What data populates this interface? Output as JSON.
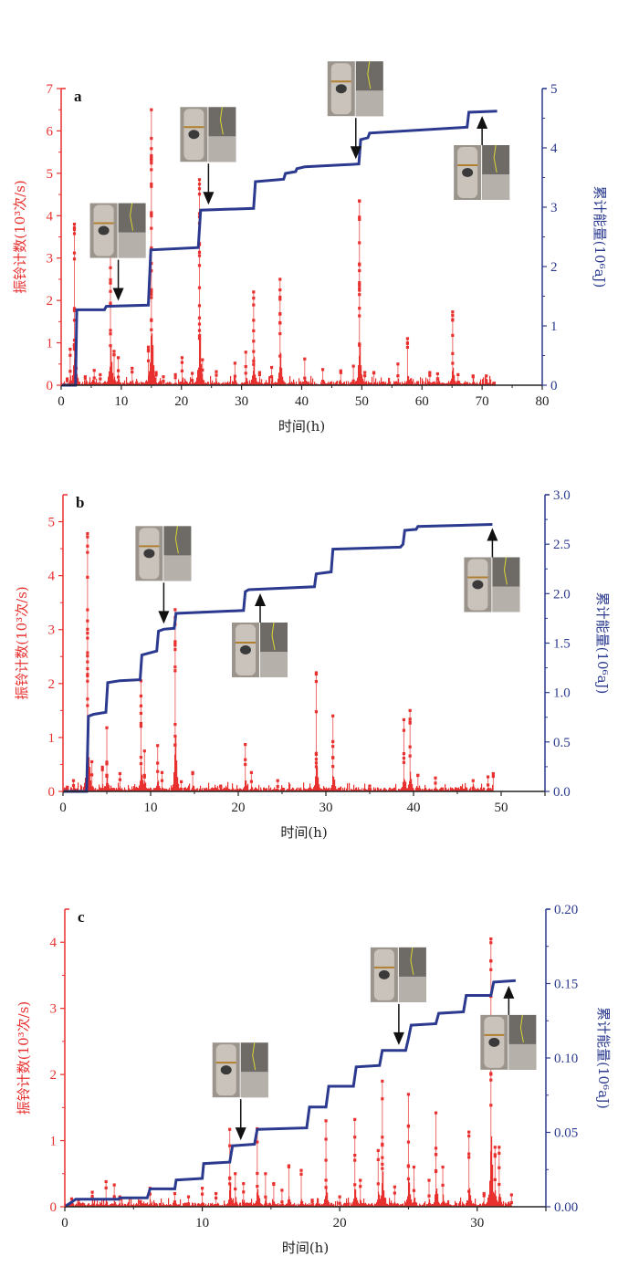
{
  "chart_data": [
    {
      "type": "bar+line",
      "panel": "a",
      "xlabel": "时间(h)",
      "ylabel_left": "振铃计数(10³次/s)",
      "ylabel_right": "累计能量(10⁶aJ)",
      "xlim": [
        0,
        80
      ],
      "xticks": [
        "0",
        "10",
        "20",
        "30",
        "40",
        "50",
        "60",
        "70",
        "80"
      ],
      "ylim_left": [
        0,
        7
      ],
      "yticks_left": [
        "0",
        "1",
        "2",
        "3",
        "4",
        "5",
        "6",
        "7"
      ],
      "ylim_right": [
        0,
        5
      ],
      "yticks_right": [
        "0",
        "1",
        "2",
        "3",
        "4",
        "5"
      ],
      "colors": {
        "ring": "#e8312f",
        "energy": "#2b3a8f"
      },
      "series": [
        {
          "name": "振铃计数",
          "kind": "bar",
          "peaks": [
            [
              1.0,
              0.15
            ],
            [
              1.5,
              0.85
            ],
            [
              2.2,
              3.8
            ],
            [
              2.5,
              0.4
            ],
            [
              4.0,
              0.2
            ],
            [
              5.5,
              0.35
            ],
            [
              6.5,
              0.25
            ],
            [
              8.2,
              3.65
            ],
            [
              8.8,
              0.8
            ],
            [
              9.5,
              0.65
            ],
            [
              11.8,
              0.4
            ],
            [
              14.5,
              0.9
            ],
            [
              15.0,
              6.5
            ],
            [
              15.8,
              0.3
            ],
            [
              17,
              0.2
            ],
            [
              19,
              0.25
            ],
            [
              20.1,
              0.65
            ],
            [
              21.8,
              0.28
            ],
            [
              23.0,
              4.85
            ],
            [
              23.5,
              0.6
            ],
            [
              25.8,
              0.32
            ],
            [
              28.9,
              0.52
            ],
            [
              30.7,
              0.78
            ],
            [
              32.0,
              2.2
            ],
            [
              33,
              0.3
            ],
            [
              35,
              0.42
            ],
            [
              36.4,
              2.5
            ],
            [
              40.5,
              0.62
            ],
            [
              43.5,
              0.37
            ],
            [
              46.5,
              0.34
            ],
            [
              48.6,
              0.45
            ],
            [
              49.6,
              4.35
            ],
            [
              50.5,
              0.3
            ],
            [
              52,
              0.3
            ],
            [
              56,
              0.5
            ],
            [
              57.6,
              1.1
            ],
            [
              61.3,
              0.3
            ],
            [
              62.6,
              0.27
            ],
            [
              65.1,
              1.73
            ],
            [
              66,
              0.25
            ],
            [
              68.5,
              0.22
            ],
            [
              70.7,
              0.22
            ],
            [
              72,
              0.05
            ]
          ]
        },
        {
          "name": "累计能量",
          "kind": "step",
          "points": [
            [
              0,
              0
            ],
            [
              2.4,
              0
            ],
            [
              2.6,
              1.27
            ],
            [
              7.2,
              1.27
            ],
            [
              7.5,
              1.33
            ],
            [
              14.5,
              1.35
            ],
            [
              14.9,
              2.28
            ],
            [
              22.8,
              2.32
            ],
            [
              23.2,
              2.95
            ],
            [
              32.0,
              2.98
            ],
            [
              32.3,
              3.43
            ],
            [
              37.0,
              3.47
            ],
            [
              37.3,
              3.57
            ],
            [
              39.0,
              3.6
            ],
            [
              39.2,
              3.65
            ],
            [
              40.5,
              3.68
            ],
            [
              48.0,
              3.72
            ],
            [
              49.5,
              3.73
            ],
            [
              49.8,
              4.14
            ],
            [
              51.0,
              4.17
            ],
            [
              51.3,
              4.25
            ],
            [
              67.5,
              4.35
            ],
            [
              67.8,
              4.6
            ],
            [
              72.5,
              4.62
            ]
          ]
        }
      ],
      "annotations": [
        {
          "type": "photo-arrow",
          "direction": "down",
          "x": 9.5
        },
        {
          "type": "photo-arrow",
          "direction": "down",
          "x": 24.5
        },
        {
          "type": "photo-arrow",
          "direction": "down",
          "x": 49.0
        },
        {
          "type": "photo-arrow",
          "direction": "up",
          "x": 70.0
        }
      ]
    },
    {
      "type": "bar+line",
      "panel": "b",
      "xlabel": "时间(h)",
      "ylabel_left": "振铃计数(10³次/s)",
      "ylabel_right": "累计能量(10⁶aJ)",
      "xlim": [
        0,
        55
      ],
      "xticks": [
        "0",
        "10",
        "20",
        "30",
        "40",
        "50"
      ],
      "ylim_left": [
        0,
        5.5
      ],
      "yticks_left": [
        "0",
        "1",
        "2",
        "3",
        "4",
        "5"
      ],
      "ylim_right": [
        0,
        3.0
      ],
      "yticks_right": [
        "0.0",
        "0.5",
        "1.0",
        "1.5",
        "2.0",
        "2.5",
        "3.0"
      ],
      "colors": {
        "ring": "#e8312f",
        "energy": "#2b3a8f"
      },
      "series": [
        {
          "name": "振铃计数",
          "kind": "bar",
          "peaks": [
            [
              0.5,
              0.08
            ],
            [
              1.2,
              0.2
            ],
            [
              2.8,
              4.78
            ],
            [
              3.3,
              0.55
            ],
            [
              4.5,
              0.45
            ],
            [
              5.0,
              1.18
            ],
            [
              6.5,
              0.33
            ],
            [
              8.9,
              2.05
            ],
            [
              9.3,
              0.75
            ],
            [
              10.8,
              0.85
            ],
            [
              11.3,
              0.35
            ],
            [
              12.8,
              3.37
            ],
            [
              13.5,
              0.18
            ],
            [
              14.8,
              0.35
            ],
            [
              18,
              0.1
            ],
            [
              20.8,
              0.87
            ],
            [
              21.5,
              0.35
            ],
            [
              24.5,
              0.2
            ],
            [
              28.9,
              2.2
            ],
            [
              30.8,
              1.4
            ],
            [
              35,
              0.1
            ],
            [
              38.9,
              1.33
            ],
            [
              39.6,
              1.5
            ],
            [
              40.5,
              0.3
            ],
            [
              42.5,
              0.25
            ],
            [
              46.8,
              0.2
            ],
            [
              48.5,
              0.27
            ],
            [
              49.1,
              0.33
            ]
          ]
        },
        {
          "name": "累计能量",
          "kind": "step",
          "points": [
            [
              0,
              0
            ],
            [
              2.7,
              0
            ],
            [
              2.9,
              0.76
            ],
            [
              3.5,
              0.78
            ],
            [
              4.9,
              0.8
            ],
            [
              5.1,
              1.1
            ],
            [
              6.5,
              1.12
            ],
            [
              8.8,
              1.13
            ],
            [
              9.0,
              1.38
            ],
            [
              10.7,
              1.42
            ],
            [
              10.9,
              1.62
            ],
            [
              11.5,
              1.64
            ],
            [
              12.7,
              1.65
            ],
            [
              12.9,
              1.8
            ],
            [
              20.6,
              1.83
            ],
            [
              20.8,
              2.02
            ],
            [
              21.2,
              2.04
            ],
            [
              28.7,
              2.07
            ],
            [
              28.9,
              2.2
            ],
            [
              30.6,
              2.22
            ],
            [
              30.8,
              2.45
            ],
            [
              38.5,
              2.47
            ],
            [
              38.8,
              2.5
            ],
            [
              39.0,
              2.64
            ],
            [
              40.3,
              2.65
            ],
            [
              40.5,
              2.68
            ],
            [
              49.0,
              2.7
            ]
          ]
        }
      ],
      "annotations": [
        {
          "type": "photo-arrow",
          "direction": "down",
          "x": 11.5
        },
        {
          "type": "photo-arrow",
          "direction": "up",
          "x": 22.5
        },
        {
          "type": "photo-arrow",
          "direction": "up",
          "x": 49.0
        }
      ]
    },
    {
      "type": "bar+line",
      "panel": "c",
      "xlabel": "时间(h)",
      "ylabel_left": "振铃计数(10³次/s)",
      "ylabel_right": "累计能量(10⁶aJ)",
      "xlim": [
        0,
        35
      ],
      "xticks": [
        "0",
        "10",
        "20",
        "30"
      ],
      "ylim_left": [
        0,
        4.5
      ],
      "yticks_left": [
        "0",
        "1",
        "2",
        "3",
        "4"
      ],
      "ylim_right": [
        0,
        0.2
      ],
      "yticks_right": [
        "0.00",
        "0.05",
        "0.10",
        "0.15",
        "0.20"
      ],
      "colors": {
        "ring": "#e8312f",
        "energy": "#2b3a8f"
      },
      "series": [
        {
          "name": "振铃计数",
          "kind": "bar",
          "peaks": [
            [
              0.5,
              0.12
            ],
            [
              1.0,
              0.1
            ],
            [
              2.0,
              0.22
            ],
            [
              3.0,
              0.38
            ],
            [
              3.6,
              0.33
            ],
            [
              4.0,
              0.15
            ],
            [
              5.5,
              0.08
            ],
            [
              6.2,
              0.28
            ],
            [
              8.0,
              0.2
            ],
            [
              9.0,
              0.15
            ],
            [
              10.0,
              0.28
            ],
            [
              11.0,
              0.2
            ],
            [
              12.0,
              1.17
            ],
            [
              12.4,
              0.5
            ],
            [
              13.0,
              0.35
            ],
            [
              14.0,
              1.18
            ],
            [
              14.6,
              0.5
            ],
            [
              15.2,
              0.35
            ],
            [
              15.8,
              0.25
            ],
            [
              16.3,
              0.62
            ],
            [
              17.2,
              0.55
            ],
            [
              18.0,
              0.1
            ],
            [
              19.0,
              1.3
            ],
            [
              20.0,
              0.15
            ],
            [
              21.1,
              1.32
            ],
            [
              21.5,
              0.4
            ],
            [
              22.8,
              0.85
            ],
            [
              23.1,
              1.9
            ],
            [
              24.0,
              0.3
            ],
            [
              25.0,
              1.7
            ],
            [
              25.4,
              0.6
            ],
            [
              26.5,
              0.4
            ],
            [
              27.0,
              1.42
            ],
            [
              27.5,
              0.6
            ],
            [
              29.4,
              1.13
            ],
            [
              30.5,
              0.2
            ],
            [
              31.0,
              4.05
            ],
            [
              31.3,
              0.9
            ],
            [
              31.6,
              0.9
            ],
            [
              32.5,
              0.18
            ]
          ]
        },
        {
          "name": "累计能量",
          "kind": "step",
          "points": [
            [
              0,
              0
            ],
            [
              0.8,
              0.005
            ],
            [
              3.9,
              0.005
            ],
            [
              4.0,
              0.006
            ],
            [
              6.0,
              0.006
            ],
            [
              6.2,
              0.012
            ],
            [
              8.0,
              0.012
            ],
            [
              8.1,
              0.018
            ],
            [
              10.0,
              0.019
            ],
            [
              10.1,
              0.029
            ],
            [
              12.0,
              0.03
            ],
            [
              12.2,
              0.041
            ],
            [
              13.8,
              0.042
            ],
            [
              14.0,
              0.052
            ],
            [
              17.6,
              0.053
            ],
            [
              17.8,
              0.067
            ],
            [
              19.0,
              0.067
            ],
            [
              19.2,
              0.081
            ],
            [
              21.0,
              0.081
            ],
            [
              21.2,
              0.094
            ],
            [
              22.9,
              0.095
            ],
            [
              23.1,
              0.105
            ],
            [
              24.8,
              0.105
            ],
            [
              25.0,
              0.113
            ],
            [
              25.2,
              0.122
            ],
            [
              27.0,
              0.123
            ],
            [
              27.2,
              0.13
            ],
            [
              29.0,
              0.131
            ],
            [
              29.2,
              0.142
            ],
            [
              31.0,
              0.142
            ],
            [
              31.2,
              0.151
            ],
            [
              32.8,
              0.152
            ]
          ]
        }
      ],
      "annotations": [
        {
          "type": "photo-arrow",
          "direction": "down",
          "x": 12.8
        },
        {
          "type": "photo-arrow",
          "direction": "down",
          "x": 24.3
        },
        {
          "type": "photo-arrow",
          "direction": "up",
          "x": 32.3
        }
      ]
    }
  ]
}
